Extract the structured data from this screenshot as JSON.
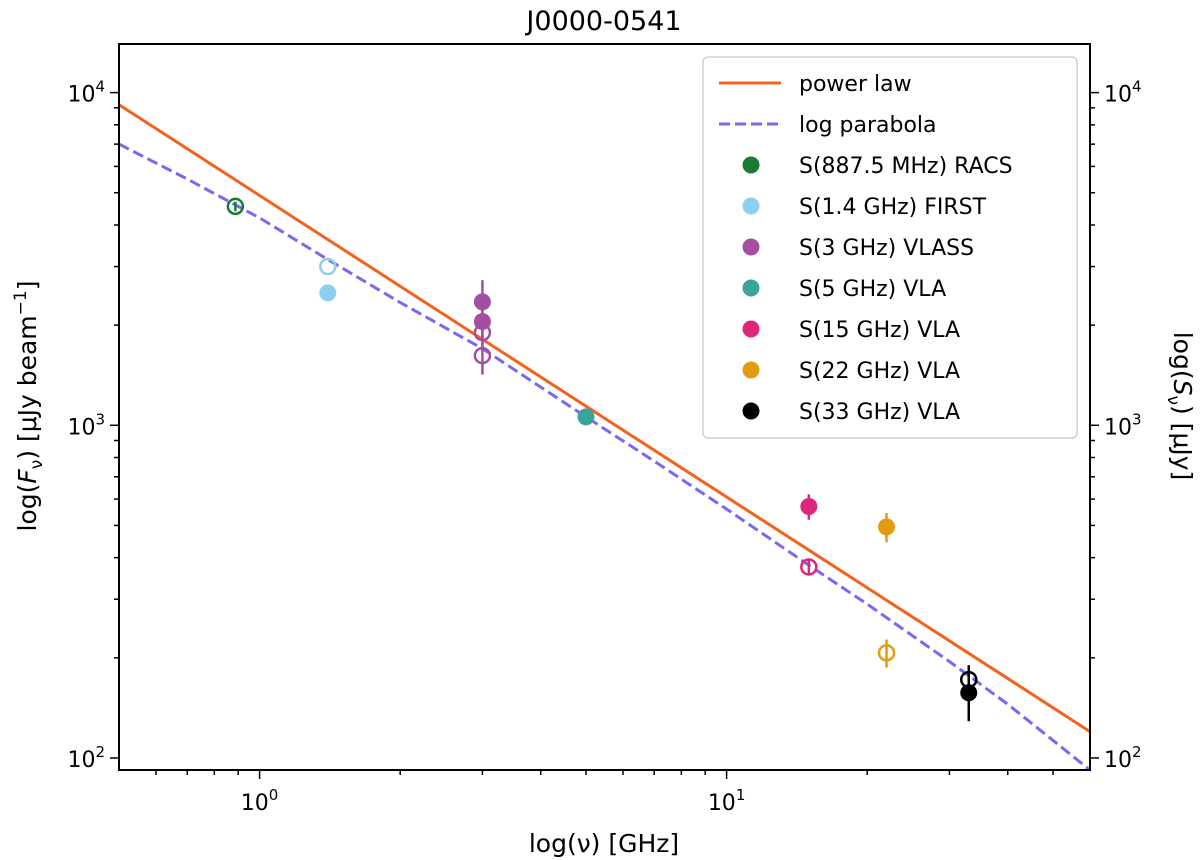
{
  "chart_data": {
    "type": "scatter",
    "title": "J0000-0541",
    "xlabel": "log(ν) [GHz]",
    "ylabel_left": "log(F_ν) [μJy beam⁻¹]",
    "ylabel_right": "log(S_ν) [μJy]",
    "x_scale": "log",
    "y_scale": "log",
    "xlim": [
      0.5,
      60
    ],
    "ylim": [
      92,
      14000
    ],
    "x_ticks": [
      {
        "value": 1,
        "base": "10",
        "exp": "0"
      },
      {
        "value": 10,
        "base": "10",
        "exp": "1"
      }
    ],
    "y_ticks": [
      {
        "value": 100,
        "base": "10",
        "exp": "2"
      },
      {
        "value": 1000,
        "base": "10",
        "exp": "3"
      },
      {
        "value": 10000,
        "base": "10",
        "exp": "4"
      }
    ],
    "legend_position": "top-right",
    "lines": [
      {
        "name": "power law",
        "color": "#f4611c",
        "dash": "solid",
        "x": [
          0.5,
          60
        ],
        "y": [
          9200,
          120
        ]
      },
      {
        "name": "log parabola",
        "color": "#7b68ee",
        "dash": "dashed",
        "x": [
          0.5,
          0.7,
          1.0,
          1.4,
          2.0,
          3.0,
          5.0,
          7.0,
          10.0,
          15.0,
          20.0,
          30.0,
          40.0,
          60.0
        ],
        "y": [
          7000,
          5500,
          4200,
          3150,
          2340,
          1700,
          1060,
          780,
          560,
          380,
          290,
          195,
          145,
          92
        ]
      }
    ],
    "series": [
      {
        "name": "S(887.5 MHz) RACS",
        "color": "#1a7a33",
        "points": [
          {
            "x": 0.8875,
            "y": 4550,
            "yerr": 150,
            "filled": false
          }
        ]
      },
      {
        "name": "S(1.4 GHz) FIRST",
        "color": "#8ecfef",
        "points": [
          {
            "x": 1.4,
            "y": 3000,
            "yerr": 0,
            "filled": false
          },
          {
            "x": 1.4,
            "y": 2500,
            "yerr": 0,
            "filled": true
          }
        ]
      },
      {
        "name": "S(3 GHz) VLASS",
        "color": "#a34da3",
        "points": [
          {
            "x": 3.0,
            "y": 2350,
            "yerr": 380,
            "filled": true
          },
          {
            "x": 3.0,
            "y": 2050,
            "yerr": 250,
            "filled": true
          },
          {
            "x": 3.0,
            "y": 1900,
            "yerr": 220,
            "filled": false
          },
          {
            "x": 3.0,
            "y": 1620,
            "yerr": 200,
            "filled": false
          }
        ]
      },
      {
        "name": "S(5 GHz) VLA",
        "color": "#3aa39a",
        "points": [
          {
            "x": 5.0,
            "y": 1060,
            "yerr": 40,
            "filled": true
          }
        ]
      },
      {
        "name": "S(15 GHz) VLA",
        "color": "#e0257c",
        "points": [
          {
            "x": 15.0,
            "y": 570,
            "yerr": 50,
            "filled": true
          },
          {
            "x": 15.0,
            "y": 375,
            "yerr": 20,
            "filled": false
          }
        ]
      },
      {
        "name": "S(22 GHz) VLA",
        "color": "#e49b0f",
        "points": [
          {
            "x": 22.0,
            "y": 495,
            "yerr": 50,
            "filled": true
          },
          {
            "x": 22.0,
            "y": 207,
            "yerr": 20,
            "filled": false
          }
        ]
      },
      {
        "name": "S(33 GHz) VLA",
        "color": "#000000",
        "points": [
          {
            "x": 33.0,
            "y": 172,
            "yerr": 18,
            "filled": false
          },
          {
            "x": 33.0,
            "y": 157,
            "yerr": 28,
            "filled": true
          }
        ]
      }
    ]
  }
}
